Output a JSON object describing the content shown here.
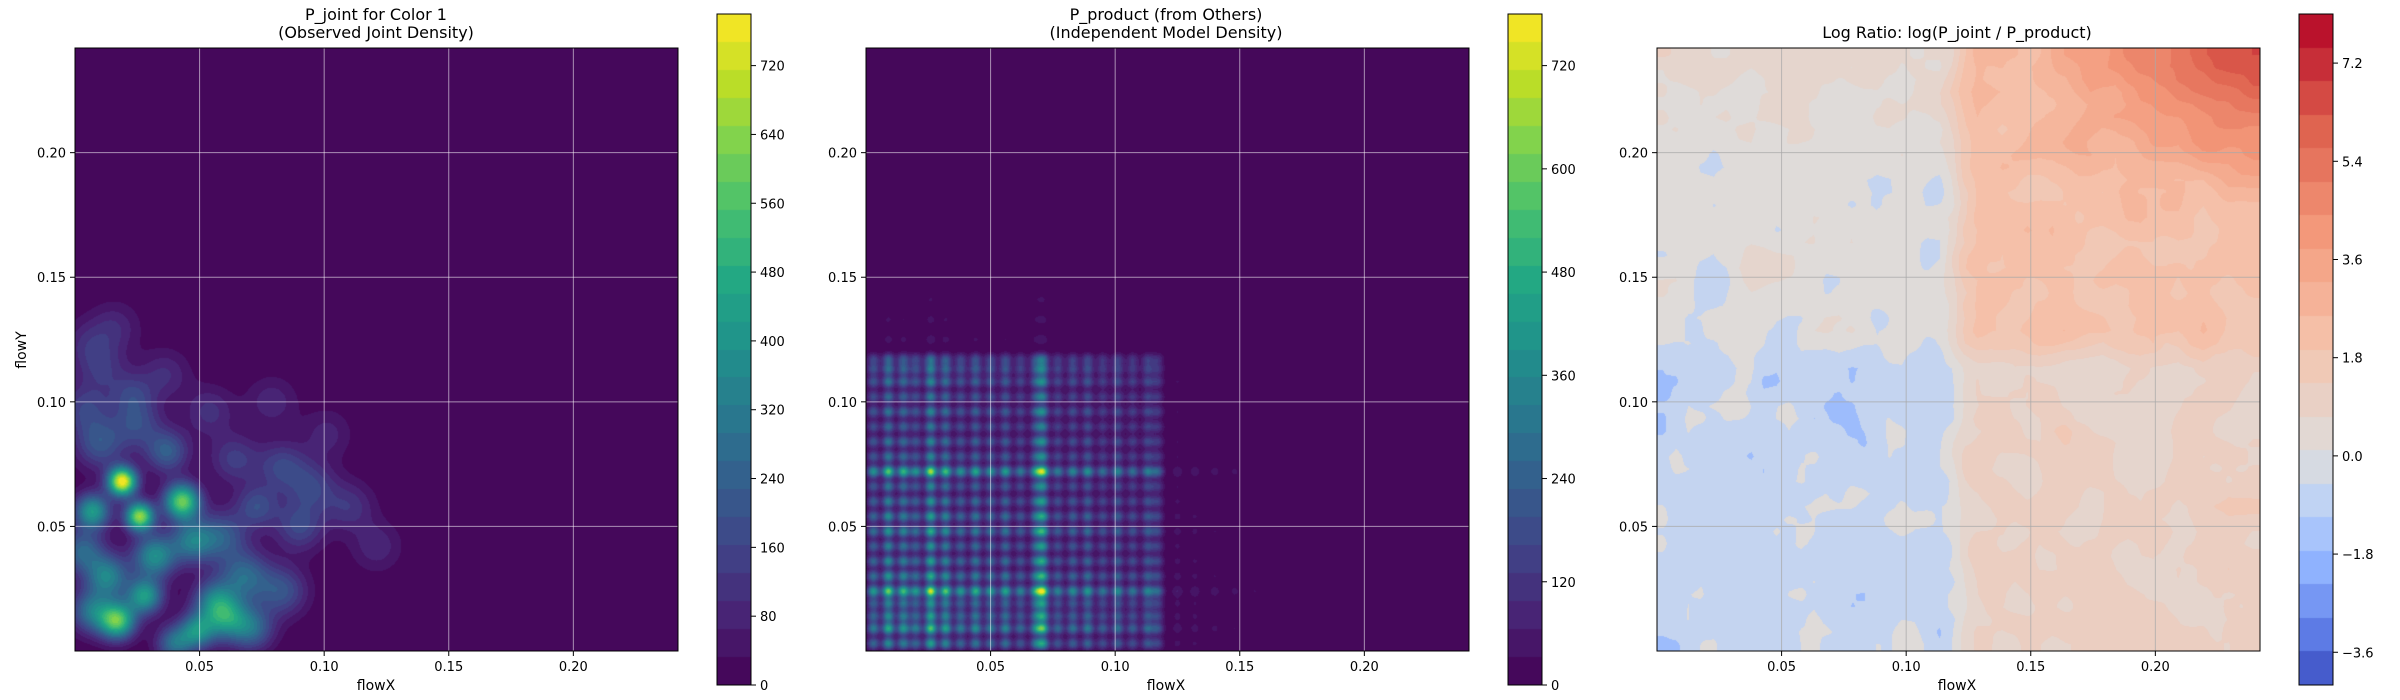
{
  "chart_data": [
    {
      "type": "heatmap",
      "title_lines": [
        "P_joint for Color 1",
        "(Observed Joint Density)"
      ],
      "xlabel": "flowX",
      "ylabel": "flowY",
      "xlim": [
        0,
        0.242
      ],
      "ylim": [
        0,
        0.242
      ],
      "xticks": [
        0.05,
        0.1,
        0.15,
        0.2
      ],
      "yticks": [
        0.05,
        0.1,
        0.15,
        0.2
      ],
      "xtick_labels": [
        "0.05",
        "0.10",
        "0.15",
        "0.20"
      ],
      "ytick_labels": [
        "0.05",
        "0.10",
        "0.15",
        "0.20"
      ],
      "grid": true,
      "colormap": "viridis",
      "colorbar": {
        "range": [
          0,
          780
        ],
        "ticks": [
          0,
          80,
          160,
          240,
          320,
          400,
          480,
          560,
          640,
          720
        ],
        "tick_labels": [
          "0",
          "80",
          "160",
          "240",
          "320",
          "400",
          "480",
          "560",
          "640",
          "720"
        ]
      },
      "blobs": [
        {
          "x": 0.019,
          "y": 0.068,
          "peak": 780,
          "radius": 0.004
        },
        {
          "x": 0.026,
          "y": 0.054,
          "peak": 650,
          "radius": 0.004
        },
        {
          "x": 0.043,
          "y": 0.06,
          "peak": 600,
          "radius": 0.005
        },
        {
          "x": 0.007,
          "y": 0.056,
          "peak": 420,
          "radius": 0.005
        },
        {
          "x": 0.032,
          "y": 0.038,
          "peak": 380,
          "radius": 0.006
        },
        {
          "x": 0.013,
          "y": 0.03,
          "peak": 340,
          "radius": 0.006
        },
        {
          "x": 0.028,
          "y": 0.022,
          "peak": 420,
          "radius": 0.005
        },
        {
          "x": 0.017,
          "y": 0.012,
          "peak": 560,
          "radius": 0.005
        },
        {
          "x": 0.007,
          "y": 0.016,
          "peak": 300,
          "radius": 0.006
        },
        {
          "x": 0.049,
          "y": 0.008,
          "peak": 360,
          "radius": 0.005
        },
        {
          "x": 0.056,
          "y": 0.02,
          "peak": 300,
          "radius": 0.006
        },
        {
          "x": 0.061,
          "y": 0.013,
          "peak": 340,
          "radius": 0.006
        },
        {
          "x": 0.071,
          "y": 0.009,
          "peak": 260,
          "radius": 0.006
        },
        {
          "x": 0.068,
          "y": 0.03,
          "peak": 260,
          "radius": 0.007
        },
        {
          "x": 0.047,
          "y": 0.044,
          "peak": 300,
          "radius": 0.006
        },
        {
          "x": 0.059,
          "y": 0.046,
          "peak": 220,
          "radius": 0.007
        },
        {
          "x": 0.083,
          "y": 0.024,
          "peak": 200,
          "radius": 0.007
        },
        {
          "x": 0.09,
          "y": 0.05,
          "peak": 170,
          "radius": 0.007
        },
        {
          "x": 0.083,
          "y": 0.074,
          "peak": 160,
          "radius": 0.007
        },
        {
          "x": 0.095,
          "y": 0.066,
          "peak": 150,
          "radius": 0.007
        },
        {
          "x": 0.11,
          "y": 0.058,
          "peak": 120,
          "radius": 0.007
        },
        {
          "x": 0.01,
          "y": 0.083,
          "peak": 200,
          "radius": 0.007
        },
        {
          "x": 0.025,
          "y": 0.091,
          "peak": 170,
          "radius": 0.007
        },
        {
          "x": 0.037,
          "y": 0.08,
          "peak": 230,
          "radius": 0.006
        },
        {
          "x": 0.004,
          "y": 0.097,
          "peak": 150,
          "radius": 0.007
        },
        {
          "x": 0.011,
          "y": 0.113,
          "peak": 110,
          "radius": 0.007
        },
        {
          "x": 0.016,
          "y": 0.13,
          "peak": 90,
          "radius": 0.007
        },
        {
          "x": 0.005,
          "y": 0.123,
          "peak": 90,
          "radius": 0.007
        },
        {
          "x": 0.054,
          "y": 0.096,
          "peak": 110,
          "radius": 0.007
        },
        {
          "x": 0.064,
          "y": 0.077,
          "peak": 140,
          "radius": 0.007
        },
        {
          "x": 0.073,
          "y": 0.058,
          "peak": 180,
          "radius": 0.006
        },
        {
          "x": 0.04,
          "y": 0.003,
          "peak": 280,
          "radius": 0.005
        },
        {
          "x": 0.003,
          "y": 0.04,
          "peak": 260,
          "radius": 0.006
        },
        {
          "x": 0.079,
          "y": 0.1,
          "peak": 90,
          "radius": 0.007
        },
        {
          "x": 0.101,
          "y": 0.087,
          "peak": 80,
          "radius": 0.007
        },
        {
          "x": 0.121,
          "y": 0.042,
          "peak": 90,
          "radius": 0.007
        },
        {
          "x": 0.036,
          "y": 0.111,
          "peak": 100,
          "radius": 0.007
        },
        {
          "x": 0.023,
          "y": 0.103,
          "peak": 130,
          "radius": 0.006
        }
      ]
    },
    {
      "type": "heatmap",
      "title_lines": [
        "P_product (from Others)",
        "(Independent Model Density)"
      ],
      "xlabel": "flowX",
      "ylabel": "",
      "xlim": [
        0,
        0.242
      ],
      "ylim": [
        0,
        0.242
      ],
      "xticks": [
        0.05,
        0.1,
        0.15,
        0.2
      ],
      "yticks": [
        0.05,
        0.1,
        0.15,
        0.2
      ],
      "xtick_labels": [
        "0.05",
        "0.10",
        "0.15",
        "0.20"
      ],
      "ytick_labels": [
        "0.05",
        "0.10",
        "0.15",
        "0.20"
      ],
      "grid": true,
      "colormap": "viridis",
      "colorbar": {
        "range": [
          0,
          780
        ],
        "ticks": [
          0,
          120,
          240,
          360,
          480,
          600,
          720
        ],
        "tick_labels": [
          "0",
          "120",
          "240",
          "360",
          "480",
          "600",
          "720"
        ]
      },
      "x_modes": [
        {
          "x": 0.003,
          "w": 0.55
        },
        {
          "x": 0.009,
          "w": 0.8
        },
        {
          "x": 0.015,
          "w": 0.7
        },
        {
          "x": 0.02,
          "w": 0.55
        },
        {
          "x": 0.026,
          "w": 0.95
        },
        {
          "x": 0.032,
          "w": 0.75
        },
        {
          "x": 0.038,
          "w": 0.55
        },
        {
          "x": 0.044,
          "w": 0.65
        },
        {
          "x": 0.05,
          "w": 0.55
        },
        {
          "x": 0.056,
          "w": 0.6
        },
        {
          "x": 0.062,
          "w": 0.45
        },
        {
          "x": 0.068,
          "w": 0.55
        },
        {
          "x": 0.071,
          "w": 0.9
        },
        {
          "x": 0.077,
          "w": 0.45
        },
        {
          "x": 0.083,
          "w": 0.5
        },
        {
          "x": 0.089,
          "w": 0.55
        },
        {
          "x": 0.095,
          "w": 0.4
        },
        {
          "x": 0.101,
          "w": 0.5
        },
        {
          "x": 0.107,
          "w": 0.4
        },
        {
          "x": 0.113,
          "w": 0.45
        },
        {
          "x": 0.117,
          "w": 0.35
        },
        {
          "x": 0.125,
          "w": 0.08
        },
        {
          "x": 0.132,
          "w": 0.07
        },
        {
          "x": 0.14,
          "w": 0.06
        },
        {
          "x": 0.148,
          "w": 0.05
        },
        {
          "x": 0.156,
          "w": 0.04
        }
      ],
      "y_modes": [
        {
          "y": 0.003,
          "w": 0.55
        },
        {
          "y": 0.009,
          "w": 0.7
        },
        {
          "y": 0.014,
          "w": 0.55
        },
        {
          "y": 0.019,
          "w": 0.5
        },
        {
          "y": 0.024,
          "w": 0.9
        },
        {
          "y": 0.03,
          "w": 0.6
        },
        {
          "y": 0.036,
          "w": 0.55
        },
        {
          "y": 0.042,
          "w": 0.5
        },
        {
          "y": 0.048,
          "w": 0.6
        },
        {
          "y": 0.054,
          "w": 0.55
        },
        {
          "y": 0.06,
          "w": 0.5
        },
        {
          "y": 0.066,
          "w": 0.45
        },
        {
          "y": 0.072,
          "w": 0.85
        },
        {
          "y": 0.078,
          "w": 0.45
        },
        {
          "y": 0.084,
          "w": 0.45
        },
        {
          "y": 0.09,
          "w": 0.4
        },
        {
          "y": 0.096,
          "w": 0.45
        },
        {
          "y": 0.102,
          "w": 0.4
        },
        {
          "y": 0.108,
          "w": 0.45
        },
        {
          "y": 0.113,
          "w": 0.4
        },
        {
          "y": 0.117,
          "w": 0.35
        },
        {
          "y": 0.125,
          "w": 0.06
        },
        {
          "y": 0.133,
          "w": 0.05
        },
        {
          "y": 0.141,
          "w": 0.04
        },
        {
          "y": 0.15,
          "w": 0.03
        },
        {
          "y": 0.157,
          "w": 0.03
        }
      ]
    },
    {
      "type": "heatmap",
      "title_lines": [
        "Log Ratio: log(P_joint / P_product)"
      ],
      "xlabel": "flowX",
      "ylabel": "",
      "xlim": [
        0,
        0.242
      ],
      "ylim": [
        0,
        0.242
      ],
      "xticks": [
        0.05,
        0.1,
        0.15,
        0.2
      ],
      "yticks": [
        0.05,
        0.1,
        0.15,
        0.2
      ],
      "xtick_labels": [
        "0.05",
        "0.10",
        "0.15",
        "0.20"
      ],
      "ytick_labels": [
        "0.05",
        "0.10",
        "0.15",
        "0.20"
      ],
      "grid": true,
      "colormap": "coolwarm",
      "colorbar": {
        "range": [
          -4.2,
          8.1
        ],
        "ticks": [
          -3.6,
          -1.8,
          0.0,
          1.8,
          3.6,
          5.4,
          7.2
        ],
        "tick_labels": [
          "−3.6",
          "−1.8",
          "0.0",
          "1.8",
          "3.6",
          "5.4",
          "7.2"
        ]
      },
      "display_range": [
        -2.0,
        7.5
      ],
      "structure": {
        "cross_x": 0.12,
        "cross_y": 0.12,
        "lower_left_mean": -0.3,
        "lower_right_mean": 0.9,
        "upper_left_mean": 0.1,
        "upper_right_mean": 1.9,
        "top_right_peak": 5.8
      }
    }
  ]
}
